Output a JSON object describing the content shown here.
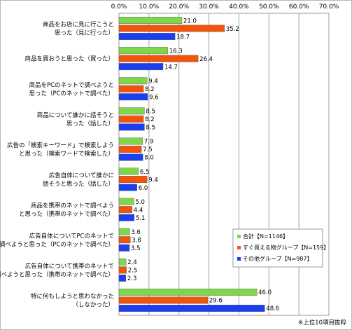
{
  "chart_data": {
    "type": "bar",
    "orientation": "horizontal",
    "x_ticks": [
      "0.0%",
      "10.0%",
      "20.0%",
      "30.0%",
      "40.0%",
      "50.0%",
      "60.0%",
      "70.0%"
    ],
    "xlim": [
      0,
      70
    ],
    "grid": true,
    "legend_position": "bottom-right",
    "categories": [
      [
        "商品をお店に見に行こうと",
        "思った（見に行った）"
      ],
      [
        "商品を買おうと思った（買った）"
      ],
      [
        "商品をPCのネットで調べようと",
        "思った（PCのネットで調べた）"
      ],
      [
        "商品について誰かに話そうと",
        "思った（話した）"
      ],
      [
        "広告の「検索キーワード」で検索しよう",
        "と思った（検索ワードで検索した）"
      ],
      [
        "広告自体について誰かに",
        "話そうと思った（話した）"
      ],
      [
        "商品を携帯のネットで調べよう",
        "と思った（携帯のネットで調べた）"
      ],
      [
        "広告自体についてPCのネットで",
        "調べようと思った（PCのネットで調べた）"
      ],
      [
        "広告自体について携帯のネットで",
        "調べようと思った（携帯のネットで調べた）"
      ],
      [
        "特に何もしようと思わなかった",
        "（しなかった）"
      ]
    ],
    "series": [
      {
        "name": "合計【N=1146】",
        "color": "#7ed64a",
        "values": [
          21.0,
          16.3,
          9.4,
          8.5,
          7.9,
          6.5,
          5.0,
          3.6,
          2.4,
          46.0
        ],
        "labels": [
          "21.0",
          "16.3",
          "9.4",
          "8.5",
          "7.9",
          "6.5",
          "5.0",
          "3.6",
          "2.4",
          "46.0"
        ]
      },
      {
        "name": "すぐ買える物グループ【N=159】",
        "color": "#f2540c",
        "values": [
          35.2,
          26.4,
          8.2,
          8.2,
          7.5,
          9.4,
          4.4,
          3.8,
          2.5,
          29.6
        ],
        "labels": [
          "35.2",
          "26.4",
          "8.2",
          "8.2",
          "7.5",
          "9.4",
          "4.4",
          "3.8",
          "2.5",
          "29.6"
        ]
      },
      {
        "name": "その他グループ【N=987】",
        "color": "#1b3ff0",
        "values": [
          18.7,
          14.7,
          9.6,
          8.5,
          8.0,
          6.0,
          5.1,
          3.5,
          2.3,
          48.6
        ],
        "labels": [
          "18.7",
          "14.7",
          "9.6",
          "8.5",
          "8.0",
          "6.0",
          "5.1",
          "3.5",
          "2.3",
          "48.6"
        ]
      }
    ]
  },
  "footnote": "※上位10項目抜粋"
}
